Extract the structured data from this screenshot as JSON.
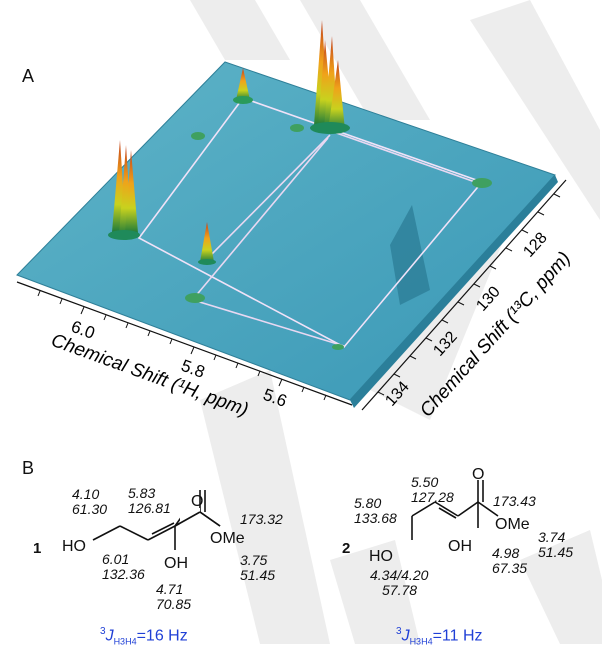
{
  "panel_a": {
    "label": "A",
    "x_axis": {
      "label": "Chemical Shift (¹H, ppm)",
      "ticks": [
        "6.0",
        "5.8",
        "5.6"
      ]
    },
    "y_axis": {
      "label": "Chemical Shift (¹³C, ppm)",
      "ticks": [
        "128",
        "130",
        "132",
        "134"
      ]
    },
    "surface_color": "#3a98b6"
  },
  "panel_b": {
    "label": "B",
    "compound1": {
      "number": "1",
      "ho": "HO",
      "oh": "OH",
      "o": "O",
      "ome": "OMe",
      "shifts": {
        "c4_h": "4.10",
        "c4_c": "61.30",
        "c3_h": "5.83",
        "c3_c": "126.81",
        "co": "173.32",
        "c2_h": "6.01",
        "c2_c": "132.36",
        "c1_h": "4.71",
        "c1_c": "70.85",
        "ome_h": "3.75",
        "ome_c": "51.45"
      },
      "coupling_prefix": "3",
      "coupling_j": "J",
      "coupling_sub": "H3H4",
      "coupling_value": "=16 Hz"
    },
    "compound2": {
      "number": "2",
      "ho": "HO",
      "oh": "OH",
      "o": "O",
      "ome": "OMe",
      "shifts": {
        "c3_h": "5.50",
        "c3_c": "127.28",
        "c4_h": "5.80",
        "c4_c": "133.68",
        "co": "173.43",
        "ome_h": "3.74",
        "ome_c": "51.45",
        "c1_h": "4.98",
        "c1_c": "67.35",
        "c5_h": "4.34/4.20",
        "c5_c": "57.78"
      },
      "coupling_prefix": "3",
      "coupling_j": "J",
      "coupling_sub": "H3H4",
      "coupling_value": "=11 Hz"
    }
  }
}
